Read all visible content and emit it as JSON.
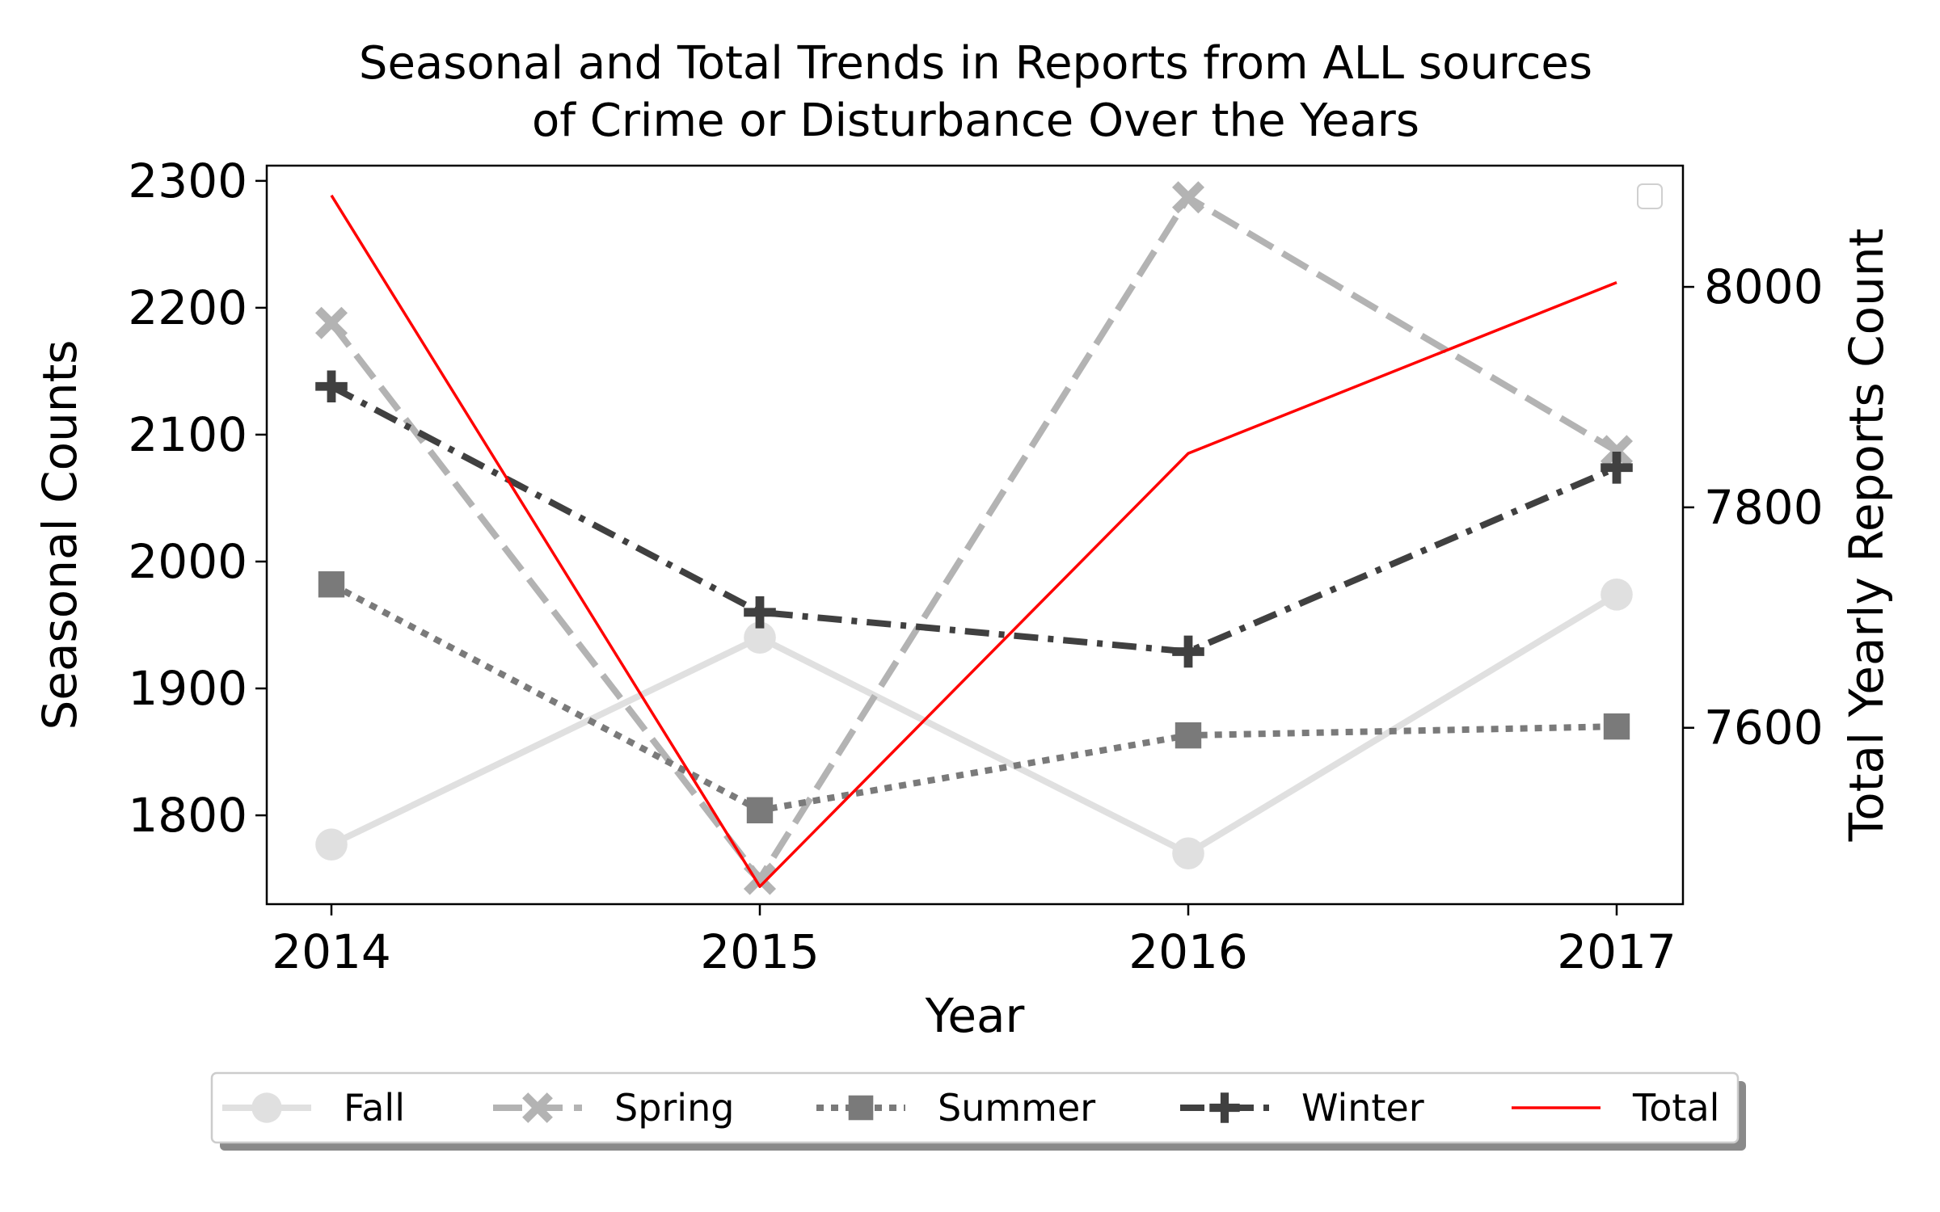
{
  "chart_data": {
    "type": "line",
    "title_line1": "Seasonal and Total Trends in Reports from ALL sources",
    "title_line2": "of Crime or Disturbance Over the Years",
    "xlabel": "Year",
    "ylabel_left": "Seasonal Counts",
    "ylabel_right": "Total Yearly Reports Count",
    "ylabel_right_color": "#ff0000",
    "x": [
      "2014",
      "2015",
      "2016",
      "2017"
    ],
    "ylim_left": [
      1730,
      2312
    ],
    "ylim_right": [
      7440,
      8110
    ],
    "yticks_left": [
      "1800",
      "1900",
      "2000",
      "2100",
      "2200",
      "2300"
    ],
    "yticks_right": [
      "7600",
      "7800",
      "8000"
    ],
    "grid": false,
    "legend_position": "bottom-center",
    "series": [
      {
        "name": "Fall",
        "axis": "left",
        "values": [
          1777,
          1940,
          1770,
          1974
        ],
        "color": "#e0e0e0",
        "dash": "solid",
        "marker": "circle"
      },
      {
        "name": "Spring",
        "axis": "left",
        "values": [
          2188,
          1750,
          2287,
          2087
        ],
        "color": "#b3b3b3",
        "dash": "dashed",
        "marker": "x"
      },
      {
        "name": "Summer",
        "axis": "left",
        "values": [
          1982,
          1804,
          1863,
          1870
        ],
        "color": "#7a7a7a",
        "dash": "dotted",
        "marker": "square"
      },
      {
        "name": "Winter",
        "axis": "left",
        "values": [
          2138,
          1960,
          1929,
          2074
        ],
        "color": "#404040",
        "dash": "dashdot",
        "marker": "plus"
      },
      {
        "name": "Total",
        "axis": "right",
        "values": [
          8083,
          7456,
          7849,
          8004
        ],
        "color": "#ff0000",
        "dash": "solid",
        "marker": "none"
      }
    ]
  }
}
